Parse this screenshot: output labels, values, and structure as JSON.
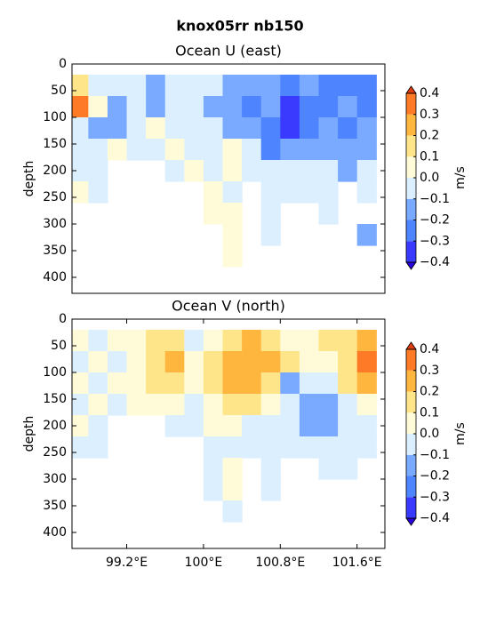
{
  "title": "knox05rr nb150",
  "chart_data": [
    {
      "type": "contourf",
      "title": "Ocean U (east)",
      "ylabel": "depth",
      "colorbar_label": "m/s",
      "xlim": [
        98.63,
        101.89
      ],
      "ylim": [
        430,
        0
      ],
      "yticks": [
        0,
        50,
        100,
        150,
        200,
        250,
        300,
        350,
        400
      ],
      "levels": [
        {
          "value": -0.4,
          "label": "−0.4"
        },
        {
          "value": -0.3,
          "label": "−0.3"
        },
        {
          "value": -0.2,
          "label": "−0.2"
        },
        {
          "value": -0.1,
          "label": "−0.1"
        },
        {
          "value": 0,
          "label": "0.0"
        },
        0.1,
        0.2,
        0.3,
        0.4
      ],
      "colors": [
        "#3a3aff",
        "#4f84ff",
        "#79aaff",
        "#dcefff",
        "#fffbd8",
        "#ffe58a",
        "#ffb63f",
        "#ff7a26"
      ],
      "under_color": "#2a00d8",
      "over_color": "#e03c10",
      "x": [
        98.7,
        98.9,
        99.1,
        99.3,
        99.5,
        99.7,
        99.9,
        100.1,
        100.3,
        100.5,
        100.7,
        100.9,
        101.1,
        101.3,
        101.5,
        101.7
      ],
      "y": [
        40,
        80,
        120,
        160,
        200,
        240,
        280,
        320,
        360
      ],
      "z": [
        [
          0.1,
          -0.1,
          -0.05,
          -0.1,
          -0.15,
          -0.1,
          -0.05,
          -0.05,
          -0.15,
          -0.2,
          -0.2,
          -0.25,
          -0.2,
          -0.25,
          -0.3,
          -0.3
        ],
        [
          0.3,
          0.05,
          -0.15,
          -0.1,
          -0.15,
          -0.1,
          -0.05,
          -0.15,
          -0.2,
          -0.25,
          -0.2,
          -0.35,
          -0.3,
          -0.25,
          -0.2,
          -0.25
        ],
        [
          -0.1,
          -0.15,
          -0.15,
          -0.05,
          0.05,
          -0.05,
          -0.05,
          -0.1,
          -0.15,
          -0.15,
          -0.3,
          -0.35,
          -0.3,
          -0.2,
          -0.25,
          -0.2
        ],
        [
          -0.05,
          -0.1,
          0.05,
          -0.05,
          -0.05,
          0.05,
          -0.05,
          -0.05,
          0.05,
          -0.05,
          -0.25,
          -0.2,
          -0.15,
          -0.2,
          -0.2,
          -0.15
        ],
        [
          -0.05,
          -0.05,
          null,
          null,
          null,
          -0.05,
          0.05,
          -0.05,
          0.05,
          -0.05,
          -0.1,
          -0.1,
          -0.1,
          -0.1,
          -0.15,
          -0.1
        ],
        [
          0.05,
          -0.05,
          null,
          null,
          null,
          null,
          null,
          0.05,
          -0.05,
          null,
          -0.05,
          -0.05,
          -0.05,
          -0.05,
          null,
          -0.05
        ],
        [
          null,
          null,
          null,
          null,
          null,
          null,
          null,
          0.05,
          0.05,
          null,
          -0.05,
          null,
          null,
          -0.05,
          null,
          null
        ],
        [
          null,
          null,
          null,
          null,
          null,
          null,
          null,
          null,
          0.05,
          null,
          -0.05,
          null,
          null,
          null,
          null,
          -0.2
        ],
        [
          null,
          null,
          null,
          null,
          null,
          null,
          null,
          null,
          0.05,
          null,
          null,
          null,
          null,
          null,
          null,
          null
        ]
      ]
    },
    {
      "type": "contourf",
      "title": "Ocean V (north)",
      "ylabel": "depth",
      "colorbar_label": "m/s",
      "xlim": [
        98.63,
        101.89
      ],
      "ylim": [
        430,
        0
      ],
      "yticks": [
        0,
        50,
        100,
        150,
        200,
        250,
        300,
        350,
        400
      ],
      "xticks": [
        {
          "value": 99.2,
          "label": "99.2°E"
        },
        {
          "value": 100,
          "label": "100°E"
        },
        {
          "value": 100.8,
          "label": "100.8°E"
        },
        {
          "value": 101.6,
          "label": "101.6°E"
        }
      ],
      "levels": [
        {
          "value": -0.4,
          "label": "−0.4"
        },
        {
          "value": -0.3,
          "label": "−0.3"
        },
        {
          "value": -0.2,
          "label": "−0.2"
        },
        {
          "value": -0.1,
          "label": "−0.1"
        },
        {
          "value": 0,
          "label": "0.0"
        },
        0.1,
        0.2,
        0.3,
        0.4
      ],
      "colors": [
        "#3a3aff",
        "#4f84ff",
        "#79aaff",
        "#dcefff",
        "#fffbd8",
        "#ffe58a",
        "#ffb63f",
        "#ff7a26"
      ],
      "under_color": "#2a00d8",
      "over_color": "#e03c10",
      "x": [
        98.7,
        98.9,
        99.1,
        99.3,
        99.5,
        99.7,
        99.9,
        100.1,
        100.3,
        100.5,
        100.7,
        100.9,
        101.1,
        101.3,
        101.5,
        101.7
      ],
      "y": [
        40,
        80,
        120,
        160,
        200,
        240,
        280,
        320,
        360
      ],
      "z": [
        [
          0.05,
          -0.05,
          0.05,
          0.05,
          0.1,
          0.15,
          -0.05,
          0.05,
          0.15,
          0.25,
          0.15,
          0.05,
          0.05,
          0.1,
          0.15,
          0.25
        ],
        [
          -0.05,
          0.05,
          -0.05,
          0.05,
          0.15,
          0.2,
          0.05,
          0.1,
          0.25,
          0.25,
          0.2,
          0.1,
          0.05,
          0.05,
          0.15,
          0.3
        ],
        [
          0.05,
          -0.05,
          0.05,
          0.05,
          0.1,
          0.15,
          0.05,
          0.15,
          0.25,
          0.2,
          0.15,
          -0.15,
          -0.1,
          -0.05,
          0.1,
          0.25
        ],
        [
          -0.05,
          0.05,
          -0.05,
          0.05,
          0.05,
          0.05,
          -0.05,
          0.05,
          0.1,
          0.15,
          0.05,
          -0.1,
          -0.2,
          -0.15,
          -0.05,
          0.05
        ],
        [
          0.05,
          -0.05,
          null,
          null,
          null,
          -0.05,
          -0.05,
          0.05,
          0.05,
          -0.05,
          -0.05,
          -0.05,
          -0.15,
          -0.15,
          -0.1,
          -0.05
        ],
        [
          -0.05,
          -0.05,
          null,
          null,
          null,
          null,
          null,
          -0.05,
          -0.05,
          -0.05,
          -0.05,
          -0.05,
          -0.05,
          -0.1,
          -0.05,
          -0.05
        ],
        [
          null,
          null,
          null,
          null,
          null,
          null,
          null,
          -0.05,
          0.05,
          null,
          -0.05,
          null,
          null,
          -0.05,
          -0.05,
          null
        ],
        [
          null,
          null,
          null,
          null,
          null,
          null,
          null,
          -0.05,
          0.05,
          null,
          -0.05,
          null,
          null,
          null,
          null,
          null
        ],
        [
          null,
          null,
          null,
          null,
          null,
          null,
          null,
          null,
          -0.05,
          null,
          null,
          null,
          null,
          null,
          null,
          null
        ]
      ]
    }
  ]
}
